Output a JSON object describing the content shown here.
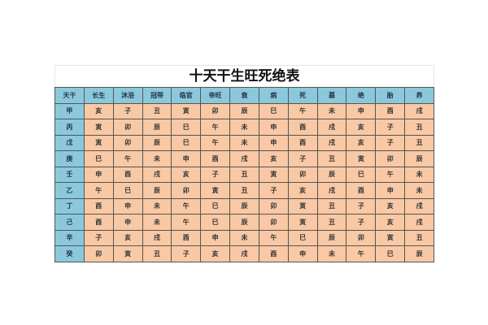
{
  "title": "十天干生旺死绝表",
  "headers": [
    "天干",
    "长生",
    "沐浴",
    "冠带",
    "临官",
    "帝旺",
    "衰",
    "病",
    "死",
    "墓",
    "绝",
    "胎",
    "养"
  ],
  "rows": [
    [
      "甲",
      "亥",
      "子",
      "丑",
      "寅",
      "卯",
      "辰",
      "巳",
      "午",
      "未",
      "申",
      "酉",
      "戌"
    ],
    [
      "丙",
      "寅",
      "卯",
      "辰",
      "巳",
      "午",
      "未",
      "申",
      "酉",
      "戌",
      "亥",
      "子",
      "丑"
    ],
    [
      "戊",
      "寅",
      "卯",
      "辰",
      "巳",
      "午",
      "未",
      "申",
      "酉",
      "戌",
      "亥",
      "子",
      "丑"
    ],
    [
      "庚",
      "巳",
      "午",
      "未",
      "申",
      "酉",
      "戌",
      "亥",
      "子",
      "丑",
      "寅",
      "卯",
      "辰"
    ],
    [
      "壬",
      "申",
      "酉",
      "戌",
      "亥",
      "子",
      "丑",
      "寅",
      "卯",
      "辰",
      "巳",
      "午",
      "未"
    ],
    [
      "乙",
      "午",
      "巳",
      "辰",
      "卯",
      "寅",
      "丑",
      "子",
      "亥",
      "戌",
      "酉",
      "申",
      "未"
    ],
    [
      "丁",
      "酉",
      "申",
      "未",
      "午",
      "巳",
      "辰",
      "卯",
      "寅",
      "丑",
      "子",
      "亥",
      "戌"
    ],
    [
      "己",
      "酉",
      "申",
      "未",
      "午",
      "巳",
      "辰",
      "卯",
      "寅",
      "丑",
      "子",
      "亥",
      "戌"
    ],
    [
      "辛",
      "子",
      "亥",
      "戌",
      "酉",
      "申",
      "未",
      "午",
      "巳",
      "辰",
      "卯",
      "寅",
      "丑"
    ],
    [
      "癸",
      "卯",
      "寅",
      "丑",
      "子",
      "亥",
      "戌",
      "酉",
      "申",
      "未",
      "午",
      "巳",
      "辰"
    ]
  ],
  "colors": {
    "header_bg": "#8cc8dc",
    "cell_bg": "#f8c9a4",
    "border": "#555555"
  }
}
